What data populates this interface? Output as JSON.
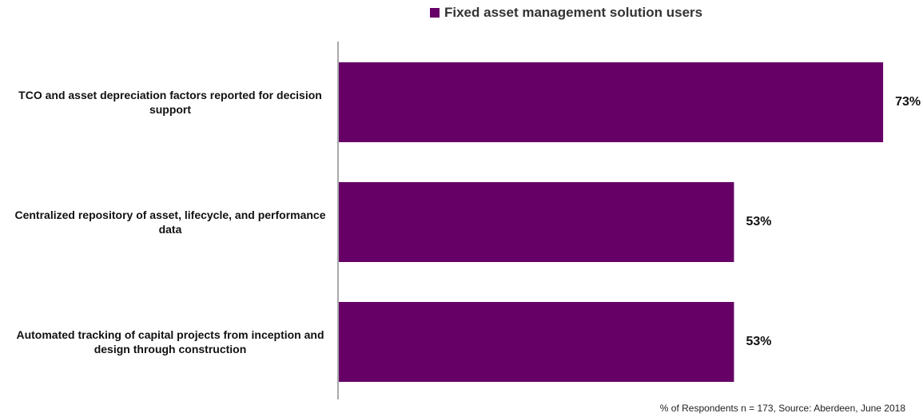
{
  "chart_data": {
    "type": "bar",
    "orientation": "horizontal",
    "categories": [
      "TCO and asset depreciation factors reported for decision support",
      "Centralized repository of asset, lifecycle, and performance data",
      "Automated tracking of capital projects from inception and design through construction"
    ],
    "series": [
      {
        "name": "Fixed asset management solution users",
        "color": "#660066",
        "values": [
          73,
          53,
          53
        ],
        "value_labels": [
          "73%",
          "53%",
          "53%"
        ]
      }
    ],
    "footnote": "% of Respondents n = 173, Source: Aberdeen, June 2018",
    "legend": "top"
  }
}
